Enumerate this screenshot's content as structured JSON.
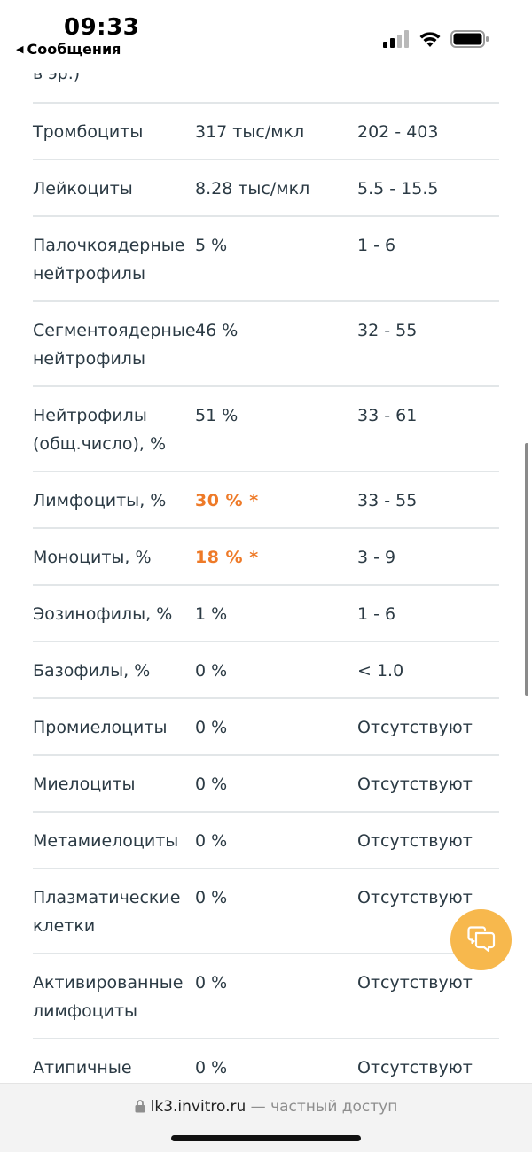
{
  "status_bar": {
    "time": "09:33",
    "back_label": "Сообщения",
    "icons": [
      "cellular-signal-icon",
      "wifi-icon",
      "battery-icon"
    ]
  },
  "table": {
    "cut_top_text": "в эр.)",
    "rows": [
      {
        "name": "Тромбоциты",
        "value": "317 тыс/мкл",
        "ref": "202 - 403"
      },
      {
        "name": "Лейкоциты",
        "value": "8.28 тыс/мкл",
        "ref": "5.5 - 15.5"
      },
      {
        "name_line1": "Палочкоядерные",
        "name_line2": "нейтрофилы",
        "value": "5 %",
        "ref": "1 - 6"
      },
      {
        "name_line1": "Сегментоядерные",
        "name_line2": "нейтрофилы",
        "value": "46 %",
        "ref": "32 - 55"
      },
      {
        "name_line1": "Нейтрофилы",
        "name_line2": "(общ.число), %",
        "value": "51 %",
        "ref": "33 - 61"
      },
      {
        "name": "Лимфоциты, %",
        "value": "30 % *",
        "ref": "33 - 55"
      },
      {
        "name": "Моноциты, %",
        "value": "18 % *",
        "ref": "3 - 9"
      },
      {
        "name": "Эозинофилы, %",
        "value": "1 %",
        "ref": "1 - 6"
      },
      {
        "name": "Базофилы, %",
        "value": "0 %",
        "ref": "< 1.0"
      },
      {
        "name": "Промиелоциты",
        "value": "0 %",
        "ref": "Отсутствуют"
      },
      {
        "name": "Миелоциты",
        "value": "0 %",
        "ref": "Отсутствуют"
      },
      {
        "name": "Метамиелоциты",
        "value": "0 %",
        "ref": "Отсутствуют"
      },
      {
        "name_line1": "Плазматические",
        "name_line2": "клетки",
        "value": "0 %",
        "ref": "Отсутствуют"
      },
      {
        "name_line1": "Активированные",
        "name_line2": "лимфоциты",
        "value": "0 %",
        "ref": "Отсутствуют"
      },
      {
        "name": "Атипичные",
        "value": "0 %",
        "ref": "Отсутствуют"
      }
    ]
  },
  "colors": {
    "abnormal": "#ee7a28",
    "chat_button": "#f7b84d",
    "text": "#2b3a44",
    "divider": "#e2e6e8"
  },
  "chat_button": {
    "icon": "chat-bubbles-icon"
  },
  "bottom_bar": {
    "domain": "lk3.invitro.ru",
    "access_text": "— частный доступ",
    "icon": "lock-icon"
  }
}
